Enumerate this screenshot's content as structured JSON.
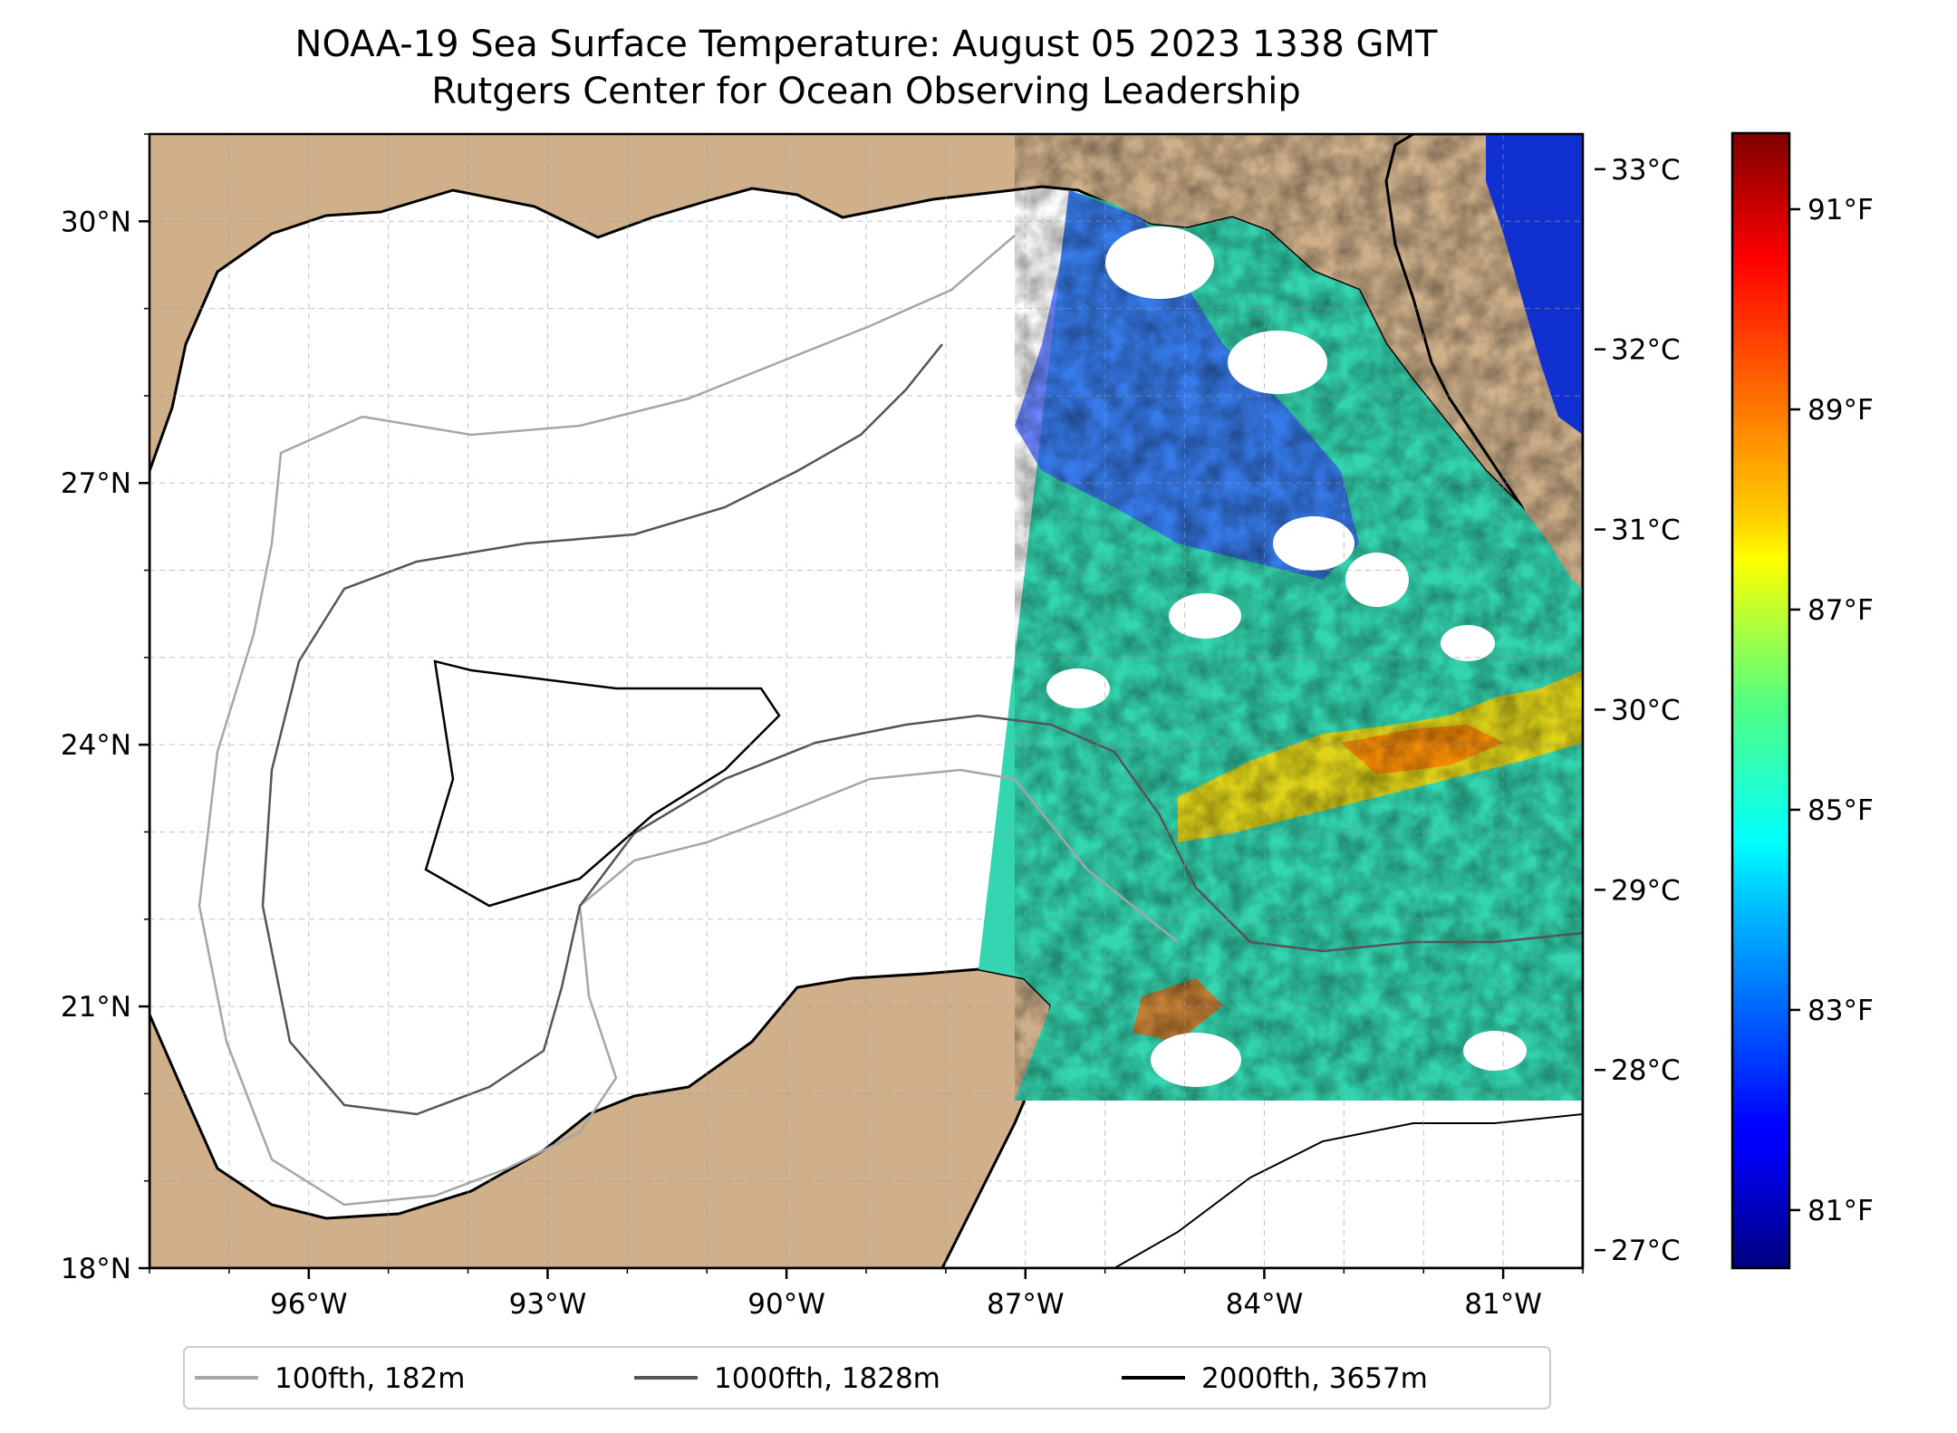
{
  "title": {
    "line1": "NOAA-19 Sea Surface Temperature: August 05 2023 1338 GMT",
    "line2": "Rutgers Center for Ocean Observing Leadership"
  },
  "map": {
    "lon_range": [
      -98,
      -80
    ],
    "lat_range": [
      18,
      31
    ],
    "x_ticks": [
      {
        "value": -96,
        "label": "96°W"
      },
      {
        "value": -93,
        "label": "93°W"
      },
      {
        "value": -90,
        "label": "90°W"
      },
      {
        "value": -87,
        "label": "87°W"
      },
      {
        "value": -84,
        "label": "84°W"
      },
      {
        "value": -81,
        "label": "81°W"
      }
    ],
    "y_ticks": [
      {
        "value": 18,
        "label": "18°N"
      },
      {
        "value": 21,
        "label": "21°N"
      },
      {
        "value": 24,
        "label": "24°N"
      },
      {
        "value": 27,
        "label": "27°N"
      },
      {
        "value": 30,
        "label": "30°N"
      }
    ],
    "gridlines": "dashed",
    "land_color": "#cfb08a",
    "lake_color": "#9bb5de",
    "coast_color": "#000000"
  },
  "colorbar": {
    "colormap": "jet",
    "celsius_range": [
      26.9,
      33.2
    ],
    "celsius_ticks": [
      {
        "value": 27,
        "label": "27°C"
      },
      {
        "value": 28,
        "label": "28°C"
      },
      {
        "value": 29,
        "label": "29°C"
      },
      {
        "value": 30,
        "label": "30°C"
      },
      {
        "value": 31,
        "label": "31°C"
      },
      {
        "value": 32,
        "label": "32°C"
      },
      {
        "value": 33,
        "label": "33°C"
      }
    ],
    "fahrenheit_ticks": [
      {
        "value": 81,
        "label": "81°F"
      },
      {
        "value": 83,
        "label": "83°F"
      },
      {
        "value": 85,
        "label": "85°F"
      },
      {
        "value": 87,
        "label": "87°F"
      },
      {
        "value": 89,
        "label": "89°F"
      },
      {
        "value": 91,
        "label": "91°F"
      }
    ]
  },
  "legend": {
    "placement": "bottom-center",
    "entries": [
      {
        "label": "100fth, 182m",
        "color": "#a6a6a6"
      },
      {
        "label": "1000fth, 1828m",
        "color": "#555555"
      },
      {
        "label": "2000fth, 3657m",
        "color": "#000000"
      }
    ]
  }
}
